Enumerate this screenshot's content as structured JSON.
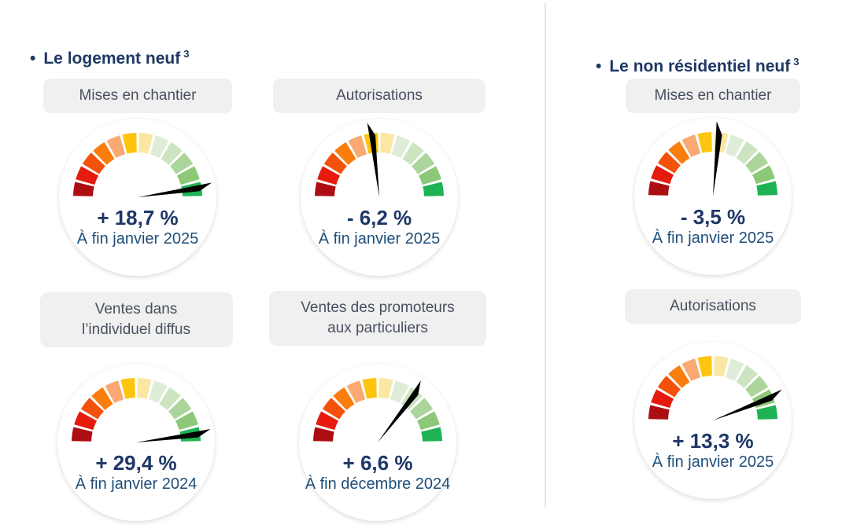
{
  "page": {
    "background": "#FFFFFF",
    "divider_color": "#E5E5E5"
  },
  "gauge_style": {
    "segment_colors": [
      "#AC0E12",
      "#E61B0E",
      "#F4510B",
      "#FB7D0E",
      "#F9A971",
      "#FEC50F",
      "#FBE7A4",
      "#DFEDD8",
      "#CCE4C0",
      "#ABD59A",
      "#8CC878",
      "#1FB254"
    ],
    "needle_color": "#000000",
    "title_color": "#1F3864",
    "value_color": "#1E3768",
    "date_color": "#1F4E79",
    "pill_bg": "#F0F0F0",
    "pill_text_color": "#47505E"
  },
  "sections": [
    {
      "bullet": "•",
      "title": "Le logement neuf",
      "title_sup": "3",
      "gauges": [
        {
          "label": "Mises en chantier",
          "value": "+ 18,7 %",
          "date": "À fin janvier 2025",
          "needle_deg": 81
        },
        {
          "label": "Autorisations",
          "value": "- 6,2 %",
          "date": "À fin janvier 2025",
          "needle_deg": -7
        },
        {
          "label": "Ventes dans\nl’individuel diffus",
          "value": "+ 29,4 %",
          "date": "À fin janvier 2024",
          "needle_deg": 82
        },
        {
          "label": "Ventes des promoteurs\naux particuliers",
          "value": "+ 6,6 %",
          "date": "À fin décembre 2024",
          "needle_deg": 37
        }
      ]
    },
    {
      "bullet": "•",
      "title": "Le non résidentiel neuf",
      "title_sup": "3",
      "gauges": [
        {
          "label": "Mises en chantier",
          "value": "- 3,5 %",
          "date": "À fin janvier 2025",
          "needle_deg": 5
        },
        {
          "label": "Autorisations",
          "value": "+ 13,3 %",
          "date": "À fin janvier 2025",
          "needle_deg": 68
        }
      ]
    }
  ],
  "chart_data": [
    {
      "type": "gauge",
      "section": "Le logement neuf",
      "title": "Mises en chantier",
      "value_pct": 18.7,
      "value_display": "+ 18,7 %",
      "period": "À fin janvier 2025",
      "scale": "12 segments, red (bad) to green (good), 180° arc",
      "needle_zone": "green (high)"
    },
    {
      "type": "gauge",
      "section": "Le logement neuf",
      "title": "Autorisations",
      "value_pct": -6.2,
      "value_display": "- 6,2 %",
      "period": "À fin janvier 2025",
      "scale": "12 segments, red (bad) to green (good), 180° arc",
      "needle_zone": "yellow-gold (middle, slightly left of vertical)"
    },
    {
      "type": "gauge",
      "section": "Le logement neuf",
      "title": "Ventes dans l’individuel diffus",
      "value_pct": 29.4,
      "value_display": "+ 29,4 %",
      "period": "À fin janvier 2024",
      "scale": "12 segments, red (bad) to green (good), 180° arc",
      "needle_zone": "green (high)"
    },
    {
      "type": "gauge",
      "section": "Le logement neuf",
      "title": "Ventes des promoteurs aux particuliers",
      "value_pct": 6.6,
      "value_display": "+ 6,6 %",
      "period": "À fin décembre 2024",
      "scale": "12 segments, red (bad) to green (good), 180° arc",
      "needle_zone": "pale green (upper middle)"
    },
    {
      "type": "gauge",
      "section": "Le non résidentiel neuf",
      "title": "Mises en chantier",
      "value_pct": -3.5,
      "value_display": "- 3,5 %",
      "period": "À fin janvier 2025",
      "scale": "12 segments, red (bad) to green (good), 180° arc",
      "needle_zone": "pale yellow (middle, near vertical)"
    },
    {
      "type": "gauge",
      "section": "Le non résidentiel neuf",
      "title": "Autorisations",
      "value_pct": 13.3,
      "value_display": "+ 13,3 %",
      "period": "À fin janvier 2025",
      "scale": "12 segments, red (bad) to green (good), 180° arc",
      "needle_zone": "medium green (high)"
    }
  ]
}
